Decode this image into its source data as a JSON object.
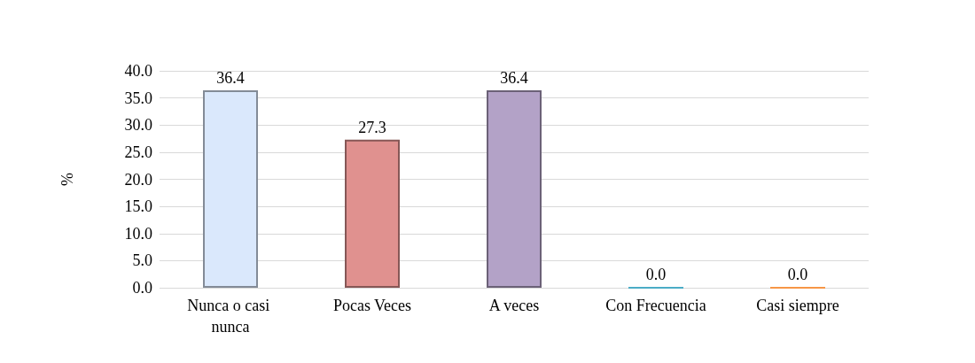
{
  "chart_data": {
    "type": "bar",
    "ylabel": "%",
    "categories": [
      "Nunca o casi nunca",
      "Pocas Veces",
      "A veces",
      "Con Frecuencia",
      "Casi siempre"
    ],
    "values": [
      36.4,
      27.3,
      36.4,
      0,
      0
    ],
    "colors": [
      "#dae8fc",
      "#e0918f",
      "#b3a2c7",
      "#4bacc6",
      "#f79646"
    ],
    "value_labels": [
      "36.4",
      "27.3",
      "36.4",
      "0.0",
      "0.0"
    ],
    "ylim": [
      0,
      40
    ],
    "yticks": [
      {
        "value": 0,
        "label": "0.0"
      },
      {
        "value": 5,
        "label": "5.0"
      },
      {
        "value": 10,
        "label": "10.0"
      },
      {
        "value": 15,
        "label": "15.0"
      },
      {
        "value": 20,
        "label": "20.0"
      },
      {
        "value": 25,
        "label": "25.0"
      },
      {
        "value": 30,
        "label": "30.0"
      },
      {
        "value": 35,
        "label": "35.0"
      },
      {
        "value": 40,
        "label": "40.0"
      }
    ],
    "grid": "y"
  }
}
